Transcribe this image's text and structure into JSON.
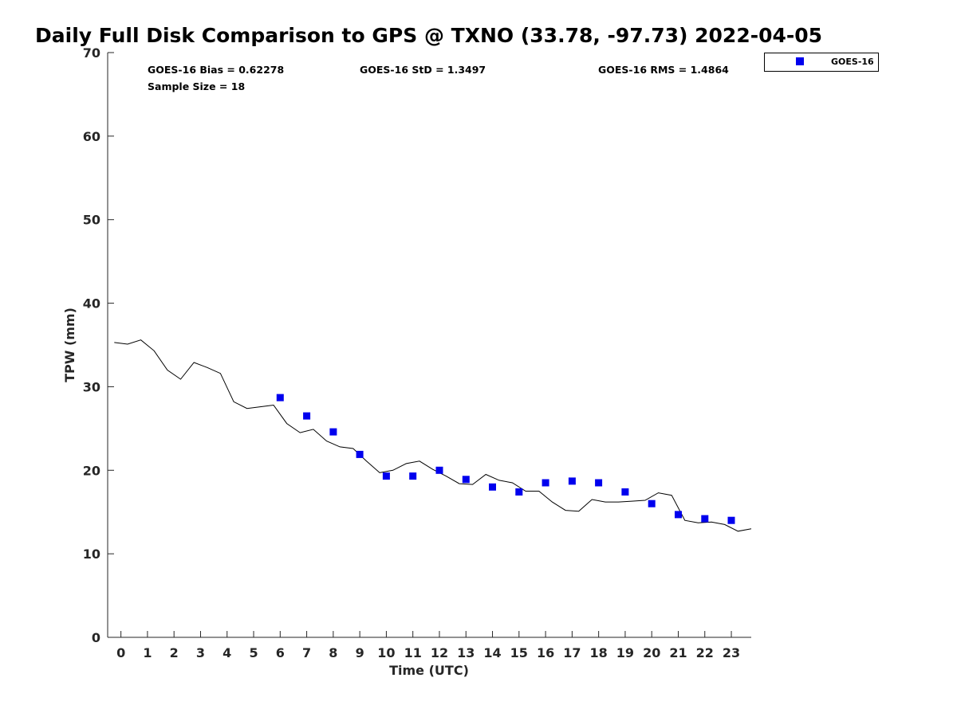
{
  "chart_data": {
    "type": "scatter",
    "title": "Daily Full Disk Comparison to GPS @ TXNO (33.78, -97.73) 2022-04-05",
    "xlabel": "Time (UTC)",
    "ylabel": "TPW (mm)",
    "xlim": [
      -0.5,
      23.75
    ],
    "ylim": [
      0,
      70
    ],
    "xticks": [
      0,
      1,
      2,
      3,
      4,
      5,
      6,
      7,
      8,
      9,
      10,
      11,
      12,
      13,
      14,
      15,
      16,
      17,
      18,
      19,
      20,
      21,
      22,
      23
    ],
    "yticks": [
      0,
      10,
      20,
      30,
      40,
      50,
      60,
      70
    ],
    "grid": false,
    "legend_position": "top-right (outside)",
    "stats": {
      "bias": "GOES-16 Bias = 0.62278",
      "std": "GOES-16 StD = 1.3497",
      "rms": "GOES-16 RMS = 1.4864",
      "sample": "Sample Size = 18"
    },
    "series": [
      {
        "name": "GOES-16",
        "kind": "markers",
        "marker": "square",
        "color": "#0000ee",
        "x": [
          6,
          7,
          8,
          9,
          10,
          11,
          12,
          13,
          14,
          15,
          16,
          17,
          18,
          19,
          20,
          21,
          22,
          23
        ],
        "y": [
          28.7,
          26.5,
          24.6,
          21.9,
          19.3,
          19.3,
          20.0,
          18.9,
          18.0,
          17.4,
          18.5,
          18.7,
          18.5,
          17.4,
          16.0,
          14.7,
          14.2,
          14.0
        ]
      },
      {
        "kind": "line",
        "color": "#000000",
        "x": [
          -0.25,
          0.25,
          0.75,
          1.25,
          1.75,
          2.25,
          2.75,
          3.25,
          3.75,
          4.25,
          4.75,
          5.25,
          5.75,
          6.25,
          6.75,
          7.25,
          7.75,
          8.25,
          8.75,
          9.25,
          9.75,
          10.25,
          10.75,
          11.25,
          11.75,
          12.25,
          12.75,
          13.25,
          13.75,
          14.25,
          14.75,
          15.25,
          15.75,
          16.25,
          16.75,
          17.25,
          17.75,
          18.25,
          18.75,
          19.25,
          19.75,
          20.25,
          20.75,
          21.25,
          21.75,
          22.25,
          22.75,
          23.25,
          23.75
        ],
        "y": [
          35.3,
          35.1,
          35.6,
          34.3,
          32.0,
          30.9,
          32.9,
          32.3,
          31.6,
          28.2,
          27.4,
          27.6,
          27.8,
          25.6,
          24.5,
          24.9,
          23.5,
          22.8,
          22.6,
          21.1,
          19.7,
          20.0,
          20.8,
          21.1,
          20.1,
          19.3,
          18.4,
          18.3,
          19.5,
          18.8,
          18.5,
          17.5,
          17.5,
          16.2,
          15.2,
          15.1,
          16.5,
          16.2,
          16.2,
          16.3,
          16.4,
          17.3,
          17.0,
          14.0,
          13.7,
          13.8,
          13.5,
          12.7,
          13.0
        ]
      }
    ]
  }
}
